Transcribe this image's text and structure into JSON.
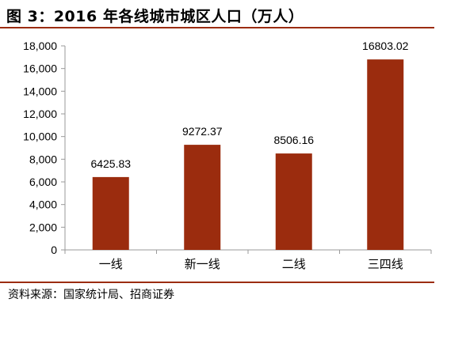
{
  "title": "图 3：2016 年各线城市城区人口（万人）",
  "source": "资料来源：国家统计局、招商证券",
  "colors": {
    "bar": "#9b2c0e",
    "rule": "#9b2c0e",
    "axis": "#999999"
  },
  "chart_data": {
    "type": "bar",
    "categories": [
      "一线",
      "新一线",
      "二线",
      "三四线"
    ],
    "values": [
      6425.83,
      9272.37,
      8506.16,
      16803.02
    ],
    "data_labels": [
      "6425.83",
      "9272.37",
      "8506.16",
      "16803.02"
    ],
    "ylim": [
      0,
      18000
    ],
    "yticks": [
      0,
      2000,
      4000,
      6000,
      8000,
      10000,
      12000,
      14000,
      16000,
      18000
    ],
    "ytick_labels": [
      "0",
      "2,000",
      "4,000",
      "6,000",
      "8,000",
      "10,000",
      "12,000",
      "14,000",
      "16,000",
      "18,000"
    ],
    "grid": false,
    "legend": "none"
  }
}
